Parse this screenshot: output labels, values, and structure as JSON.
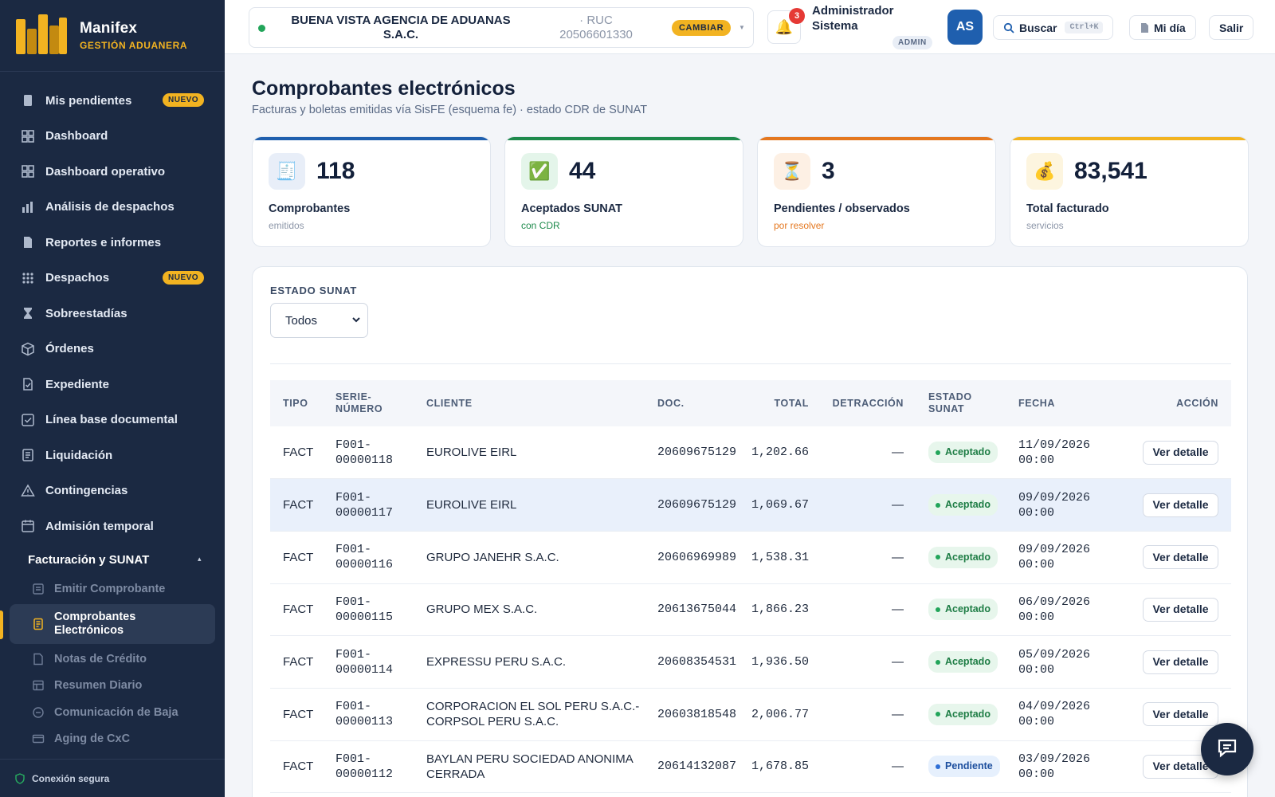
{
  "brand": {
    "name": "Manifex",
    "subtitle": "GESTIÓN ADUANERA"
  },
  "sidebar": {
    "items": [
      {
        "label": "Mis pendientes",
        "icon": "clipboard-icon",
        "badge": "NUEVO"
      },
      {
        "label": "Dashboard",
        "icon": "grid-icon"
      },
      {
        "label": "Dashboard operativo",
        "icon": "grid-icon"
      },
      {
        "label": "Análisis de despachos",
        "icon": "bar-chart-icon"
      },
      {
        "label": "Reportes e informes",
        "icon": "document-icon"
      },
      {
        "label": "Despachos",
        "icon": "dots-grid-icon",
        "badge": "NUEVO"
      },
      {
        "label": "Sobreestadías",
        "icon": "hourglass-icon"
      },
      {
        "label": "Órdenes",
        "icon": "box-icon"
      },
      {
        "label": "Expediente",
        "icon": "file-check-icon"
      },
      {
        "label": "Línea base documental",
        "icon": "checkbox-icon"
      },
      {
        "label": "Liquidación",
        "icon": "receipt-icon"
      },
      {
        "label": "Contingencias",
        "icon": "warning-icon"
      },
      {
        "label": "Admisión temporal",
        "icon": "calendar-icon"
      }
    ],
    "group": {
      "label": "Facturación y SUNAT",
      "caret": "▴",
      "items": [
        {
          "label": "Emitir Comprobante",
          "icon": "form-icon"
        },
        {
          "label": "Comprobantes Electrónicos",
          "icon": "invoice-icon",
          "active": true
        },
        {
          "label": "Notas de Crédito",
          "icon": "note-icon"
        },
        {
          "label": "Resumen Diario",
          "icon": "table-icon"
        },
        {
          "label": "Comunicación de Baja",
          "icon": "minus-circle-icon"
        },
        {
          "label": "Aging de CxC",
          "icon": "card-icon"
        }
      ]
    },
    "footer": "Conexión segura"
  },
  "topbar": {
    "agency_name": "BUENA VISTA AGENCIA DE ADUANAS S.A.C.",
    "ruc": "· RUC 20506601330",
    "change_label": "CAMBIAR",
    "notifications": "3",
    "user_name": "Administrador Sistema",
    "role": "ADMIN",
    "avatar": "AS",
    "search_label": "Buscar",
    "search_shortcut": "Ctrl+K",
    "myday_label": "Mi día",
    "logout_label": "Salir"
  },
  "page": {
    "title": "Comprobantes electrónicos",
    "subtitle": "Facturas y boletas emitidas vía SisFE (esquema fe) · estado CDR de SUNAT"
  },
  "kpis": [
    {
      "value": "118",
      "label": "Comprobantes",
      "hint": "emitidos",
      "icon": "receipt-icon",
      "color": "#1f5fae"
    },
    {
      "value": "44",
      "label": "Aceptados SUNAT",
      "hint": "con CDR",
      "icon": "check-icon",
      "color": "#1e8a4c"
    },
    {
      "value": "3",
      "label": "Pendientes / observados",
      "hint": "por resolver",
      "icon": "hourglass-icon",
      "color": "#e4771f"
    },
    {
      "value": "83,541",
      "label": "Total facturado",
      "hint": "servicios",
      "icon": "money-bag-icon",
      "color": "#f2b321"
    }
  ],
  "filter": {
    "label": "ESTADO SUNAT",
    "value": "Todos"
  },
  "table": {
    "headers": [
      "TIPO",
      "SERIE-\nNÚMERO",
      "CLIENTE",
      "DOC.",
      "TOTAL",
      "DETRACCIÓN",
      "ESTADO\nSUNAT",
      "FECHA",
      "ACCIÓN"
    ],
    "action_label": "Ver detalle",
    "rows": [
      {
        "tipo": "FACT",
        "serie": "F001-\n00000118",
        "cliente": "EUROLIVE EIRL",
        "doc": "20609675129",
        "total": "1,202.66",
        "detraccion": "—",
        "estado": "Aceptado",
        "fecha": "11/09/2026\n00:00"
      },
      {
        "tipo": "FACT",
        "serie": "F001-\n00000117",
        "cliente": "EUROLIVE EIRL",
        "doc": "20609675129",
        "total": "1,069.67",
        "detraccion": "—",
        "estado": "Aceptado",
        "fecha": "09/09/2026\n00:00"
      },
      {
        "tipo": "FACT",
        "serie": "F001-\n00000116",
        "cliente": "GRUPO JANEHR S.A.C.",
        "doc": "20606969989",
        "total": "1,538.31",
        "detraccion": "—",
        "estado": "Aceptado",
        "fecha": "09/09/2026\n00:00"
      },
      {
        "tipo": "FACT",
        "serie": "F001-\n00000115",
        "cliente": "GRUPO MEX S.A.C.",
        "doc": "20613675044",
        "total": "1,866.23",
        "detraccion": "—",
        "estado": "Aceptado",
        "fecha": "06/09/2026\n00:00"
      },
      {
        "tipo": "FACT",
        "serie": "F001-\n00000114",
        "cliente": "EXPRESSU PERU S.A.C.",
        "doc": "20608354531",
        "total": "1,936.50",
        "detraccion": "—",
        "estado": "Aceptado",
        "fecha": "05/09/2026\n00:00"
      },
      {
        "tipo": "FACT",
        "serie": "F001-\n00000113",
        "cliente": "CORPORACION EL SOL PERU S.A.C.-\nCORPSOL PERU S.A.C.",
        "doc": "20603818548",
        "total": "2,006.77",
        "detraccion": "—",
        "estado": "Aceptado",
        "fecha": "04/09/2026\n00:00"
      },
      {
        "tipo": "FACT",
        "serie": "F001-\n00000112",
        "cliente": "BAYLAN PERU SOCIEDAD ANONIMA\nCERRADA",
        "doc": "20614132087",
        "total": "1,678.85",
        "detraccion": "—",
        "estado": "Pendiente",
        "fecha": "03/09/2026\n00:00"
      }
    ]
  },
  "colors": {
    "sidebar": "#1b2942",
    "accent": "#f2b321",
    "primary": "#1f5fae",
    "ok": "#22a55a"
  }
}
